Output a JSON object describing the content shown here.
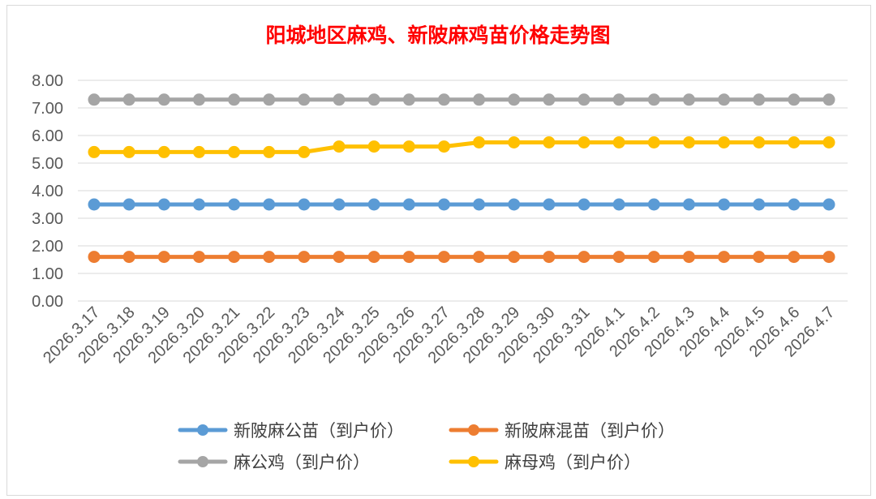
{
  "chart_data": {
    "type": "line",
    "title": "阳城地区麻鸡、新陂麻鸡苗价格走势图",
    "xlabel": "",
    "ylabel": "",
    "ylim": [
      0,
      8
    ],
    "yticks": [
      "0.00",
      "1.00",
      "2.00",
      "3.00",
      "4.00",
      "5.00",
      "6.00",
      "7.00",
      "8.00"
    ],
    "grid": true,
    "legend_position": "bottom",
    "categories": [
      "2026.3.17",
      "2026.3.18",
      "2026.3.19",
      "2026.3.20",
      "2026.3.21",
      "2026.3.22",
      "2026.3.23",
      "2026.3.24",
      "2026.3.25",
      "2026.3.26",
      "2026.3.27",
      "2026.3.28",
      "2026.3.29",
      "2026.3.30",
      "2026.3.31",
      "2026.4.1",
      "2026.4.2",
      "2026.4.3",
      "2026.4.4",
      "2026.4.5",
      "2026.4.6",
      "2026.4.7"
    ],
    "series": [
      {
        "name": "新陂麻公苗（到户价）",
        "color": "#5b9bd5",
        "values": [
          3.5,
          3.5,
          3.5,
          3.5,
          3.5,
          3.5,
          3.5,
          3.5,
          3.5,
          3.5,
          3.5,
          3.5,
          3.5,
          3.5,
          3.5,
          3.5,
          3.5,
          3.5,
          3.5,
          3.5,
          3.5,
          3.5
        ]
      },
      {
        "name": "新陂麻混苗（到户价）",
        "color": "#ed7d31",
        "values": [
          1.6,
          1.6,
          1.6,
          1.6,
          1.6,
          1.6,
          1.6,
          1.6,
          1.6,
          1.6,
          1.6,
          1.6,
          1.6,
          1.6,
          1.6,
          1.6,
          1.6,
          1.6,
          1.6,
          1.6,
          1.6,
          1.6
        ]
      },
      {
        "name": "麻公鸡（到户价）",
        "color": "#a5a5a5",
        "values": [
          7.3,
          7.3,
          7.3,
          7.3,
          7.3,
          7.3,
          7.3,
          7.3,
          7.3,
          7.3,
          7.3,
          7.3,
          7.3,
          7.3,
          7.3,
          7.3,
          7.3,
          7.3,
          7.3,
          7.3,
          7.3,
          7.3
        ]
      },
      {
        "name": "麻母鸡（到户价）",
        "color": "#ffc000",
        "values": [
          5.4,
          5.4,
          5.4,
          5.4,
          5.4,
          5.4,
          5.4,
          5.6,
          5.6,
          5.6,
          5.6,
          5.75,
          5.75,
          5.75,
          5.75,
          5.75,
          5.75,
          5.75,
          5.75,
          5.75,
          5.75,
          5.75
        ]
      }
    ]
  }
}
